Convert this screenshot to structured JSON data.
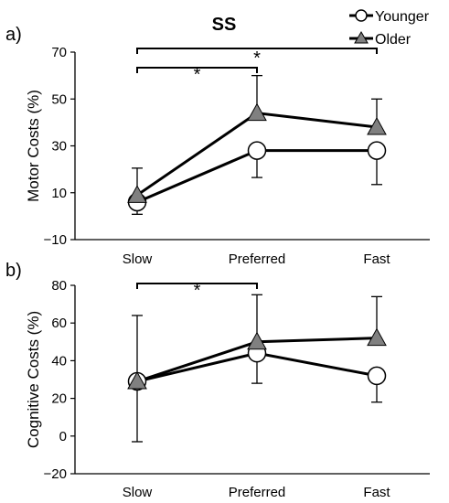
{
  "figure_title": "SS",
  "legend": {
    "entries": [
      {
        "label": "Younger",
        "marker": "circle",
        "fill": "#ffffff"
      },
      {
        "label": "Older",
        "marker": "triangle",
        "fill": "#808080"
      }
    ]
  },
  "colors": {
    "older_fill": "#808080",
    "younger_fill": "#ffffff",
    "line": "#000000"
  },
  "chart_data": [
    {
      "type": "line",
      "panel_label": "a)",
      "title": "SS",
      "xlabel": "",
      "ylabel": "Motor Costs (%)",
      "categories": [
        "Slow",
        "Preferred",
        "Fast"
      ],
      "ylim": [
        -10,
        70
      ],
      "yticks": [
        -10,
        10,
        30,
        50,
        70
      ],
      "ytick_labels": [
        "−10",
        "10",
        "30",
        "50",
        "70"
      ],
      "grid": false,
      "legend_placement": "top-right",
      "series": [
        {
          "name": "Younger",
          "marker": "circle",
          "values": [
            6,
            28,
            28
          ],
          "err_lower": [
            5.2,
            11.5,
            14.5
          ],
          "err_upper": [
            0,
            0,
            0
          ]
        },
        {
          "name": "Older",
          "marker": "triangle",
          "values": [
            9,
            44,
            38
          ],
          "err_lower": [
            0,
            0,
            0
          ],
          "err_upper": [
            11.5,
            16,
            12
          ]
        }
      ],
      "significance": [
        {
          "from": "Slow",
          "to": "Preferred",
          "label": "*"
        },
        {
          "from": "Slow",
          "to": "Fast",
          "label": "*"
        }
      ]
    },
    {
      "type": "line",
      "panel_label": "b)",
      "title": "",
      "xlabel": "",
      "ylabel": "Cognitive Costs (%)",
      "categories": [
        "Slow",
        "Preferred",
        "Fast"
      ],
      "ylim": [
        -20,
        80
      ],
      "yticks": [
        -20,
        0,
        20,
        40,
        60,
        80
      ],
      "ytick_labels": [
        "−20",
        "0",
        "20",
        "40",
        "60",
        "80"
      ],
      "grid": false,
      "series": [
        {
          "name": "Younger",
          "marker": "circle",
          "values": [
            29,
            44,
            32
          ],
          "err_lower": [
            32,
            16,
            14
          ],
          "err_upper": [
            35,
            0,
            0
          ]
        },
        {
          "name": "Older",
          "marker": "triangle",
          "values": [
            29,
            50,
            52
          ],
          "err_lower": [
            0,
            0,
            0
          ],
          "err_upper": [
            0,
            25,
            22
          ]
        }
      ],
      "significance": [
        {
          "from": "Slow",
          "to": "Preferred",
          "label": "*"
        }
      ]
    }
  ]
}
